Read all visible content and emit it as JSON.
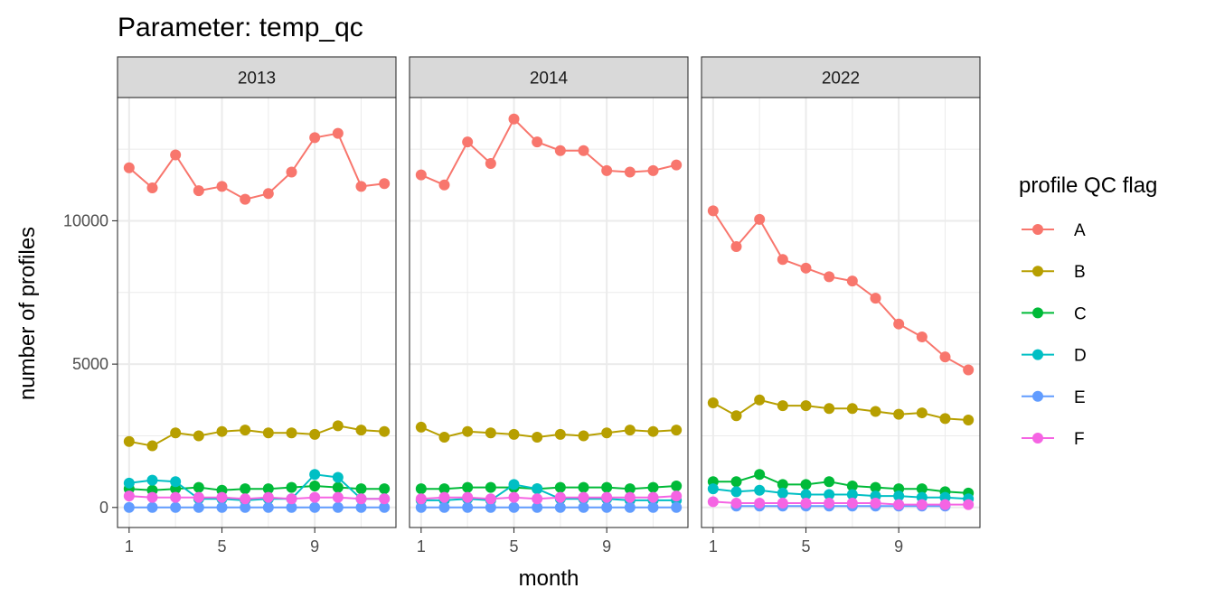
{
  "chart_data": {
    "type": "line",
    "title": "Parameter:  temp_qc",
    "xlabel": "month",
    "ylabel": "number of profiles",
    "x_ticks": [
      1,
      5,
      9
    ],
    "y_ticks": [
      0,
      5000,
      10000
    ],
    "y_tick_labels": [
      "0",
      "5000",
      "10000"
    ],
    "xlim": [
      0.5,
      12.5
    ],
    "ylim": [
      -700,
      14300
    ],
    "grid": true,
    "legend": {
      "title": "profile QC flag",
      "position": "right",
      "entries": [
        "A",
        "B",
        "C",
        "D",
        "E",
        "F"
      ]
    },
    "colors": {
      "A": "#F8766D",
      "B": "#B79F00",
      "C": "#00BA38",
      "D": "#00BFC4",
      "E": "#619CFF",
      "F": "#F564E3"
    },
    "panels": [
      {
        "label": "2013",
        "series": [
          {
            "name": "A",
            "x": [
              1,
              2,
              3,
              4,
              5,
              6,
              7,
              8,
              9,
              10,
              11,
              12
            ],
            "values": [
              11850,
              11150,
              12300,
              11050,
              11200,
              10750,
              10950,
              11700,
              12900,
              13050,
              11200,
              11300
            ]
          },
          {
            "name": "B",
            "x": [
              1,
              2,
              3,
              4,
              5,
              6,
              7,
              8,
              9,
              10,
              11,
              12
            ],
            "values": [
              2300,
              2150,
              2600,
              2500,
              2650,
              2700,
              2600,
              2600,
              2550,
              2850,
              2700,
              2650
            ]
          },
          {
            "name": "C",
            "x": [
              1,
              2,
              3,
              4,
              5,
              6,
              7,
              8,
              9,
              10,
              11,
              12
            ],
            "values": [
              650,
              600,
              650,
              700,
              600,
              650,
              650,
              700,
              750,
              700,
              650,
              650
            ]
          },
          {
            "name": "D",
            "x": [
              1,
              2,
              3,
              4,
              5,
              6,
              7,
              8,
              9,
              10,
              11,
              12
            ],
            "values": [
              850,
              950,
              900,
              300,
              300,
              250,
              300,
              300,
              1150,
              1050,
              300,
              300
            ]
          },
          {
            "name": "E",
            "x": [
              1,
              2,
              3,
              4,
              5,
              6,
              7,
              8,
              9,
              10,
              11,
              12
            ],
            "values": [
              0,
              0,
              0,
              0,
              0,
              0,
              0,
              0,
              0,
              0,
              0,
              0
            ]
          },
          {
            "name": "F",
            "x": [
              1,
              2,
              3,
              4,
              5,
              6,
              7,
              8,
              9,
              10,
              11,
              12
            ],
            "values": [
              400,
              350,
              350,
              350,
              350,
              300,
              350,
              300,
              350,
              350,
              300,
              300
            ]
          }
        ]
      },
      {
        "label": "2014",
        "series": [
          {
            "name": "A",
            "x": [
              1,
              2,
              3,
              4,
              5,
              6,
              7,
              8,
              9,
              10,
              11,
              12
            ],
            "values": [
              11600,
              11250,
              12750,
              12000,
              13550,
              12750,
              12450,
              12450,
              11750,
              11700,
              11750,
              11950
            ]
          },
          {
            "name": "B",
            "x": [
              1,
              2,
              3,
              4,
              5,
              6,
              7,
              8,
              9,
              10,
              11,
              12
            ],
            "values": [
              2800,
              2450,
              2650,
              2600,
              2550,
              2450,
              2550,
              2500,
              2600,
              2700,
              2650,
              2700
            ]
          },
          {
            "name": "C",
            "x": [
              1,
              2,
              3,
              4,
              5,
              6,
              7,
              8,
              9,
              10,
              11,
              12
            ],
            "values": [
              650,
              650,
              700,
              700,
              700,
              650,
              700,
              700,
              700,
              650,
              700,
              750
            ]
          },
          {
            "name": "D",
            "x": [
              1,
              2,
              3,
              4,
              5,
              6,
              7,
              8,
              9,
              10,
              11,
              12
            ],
            "values": [
              250,
              250,
              300,
              250,
              800,
              650,
              300,
              300,
              300,
              250,
              250,
              250
            ]
          },
          {
            "name": "E",
            "x": [
              1,
              2,
              3,
              4,
              5,
              6,
              7,
              8,
              9,
              10,
              11,
              12
            ],
            "values": [
              0,
              0,
              0,
              0,
              0,
              0,
              0,
              0,
              0,
              0,
              0,
              0
            ]
          },
          {
            "name": "F",
            "x": [
              1,
              2,
              3,
              4,
              5,
              6,
              7,
              8,
              9,
              10,
              11,
              12
            ],
            "values": [
              300,
              350,
              350,
              300,
              350,
              300,
              350,
              350,
              350,
              350,
              350,
              400
            ]
          }
        ]
      },
      {
        "label": "2022",
        "series": [
          {
            "name": "A",
            "x": [
              1,
              2,
              3,
              4,
              5,
              6,
              7,
              8,
              9,
              10,
              11,
              12
            ],
            "values": [
              10350,
              9100,
              10050,
              8650,
              8350,
              8050,
              7900,
              7300,
              6400,
              5950,
              5250,
              4800
            ]
          },
          {
            "name": "B",
            "x": [
              1,
              2,
              3,
              4,
              5,
              6,
              7,
              8,
              9,
              10,
              11,
              12
            ],
            "values": [
              3650,
              3200,
              3750,
              3550,
              3550,
              3450,
              3450,
              3350,
              3250,
              3300,
              3100,
              3050
            ]
          },
          {
            "name": "C",
            "x": [
              1,
              2,
              3,
              4,
              5,
              6,
              7,
              8,
              9,
              10,
              11,
              12
            ],
            "values": [
              900,
              900,
              1150,
              800,
              800,
              900,
              750,
              700,
              650,
              650,
              550,
              500
            ]
          },
          {
            "name": "D",
            "x": [
              1,
              2,
              3,
              4,
              5,
              6,
              7,
              8,
              9,
              10,
              11,
              12
            ],
            "values": [
              650,
              550,
              600,
              500,
              450,
              450,
              450,
              400,
              400,
              350,
              350,
              300
            ]
          },
          {
            "name": "E",
            "x": [
              2,
              3,
              4,
              5,
              6,
              7,
              8,
              9,
              10,
              11
            ],
            "values": [
              50,
              50,
              50,
              50,
              50,
              50,
              50,
              50,
              50,
              50
            ]
          },
          {
            "name": "F",
            "x": [
              1,
              2,
              3,
              4,
              5,
              6,
              7,
              8,
              9,
              10,
              11,
              12
            ],
            "values": [
              200,
              150,
              150,
              150,
              150,
              150,
              150,
              150,
              100,
              100,
              100,
              100
            ]
          }
        ]
      }
    ]
  }
}
